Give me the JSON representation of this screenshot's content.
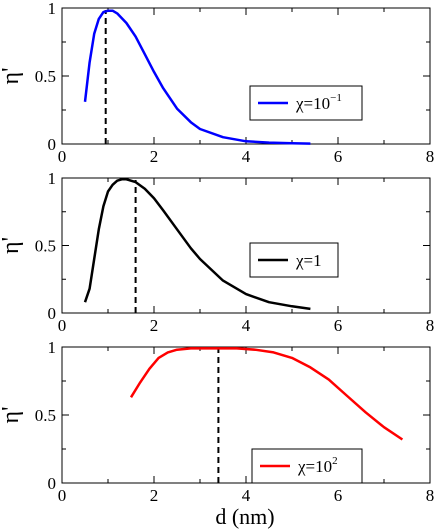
{
  "chart_data": [
    {
      "type": "line",
      "xlim": [
        0,
        8
      ],
      "ylim": [
        0,
        1
      ],
      "xticks": [
        "0",
        "2",
        "4",
        "6",
        "8"
      ],
      "yticks": [
        "0",
        "0.5",
        "1"
      ],
      "ylabel": "η'",
      "xlabel": "",
      "grid": false,
      "legend_position": "right",
      "series": [
        {
          "name_base": "χ=10",
          "name_exp": "−1",
          "color": "#0000ff",
          "x": [
            0.5,
            0.6,
            0.7,
            0.8,
            0.9,
            1.0,
            1.1,
            1.2,
            1.4,
            1.6,
            1.8,
            2.0,
            2.2,
            2.5,
            2.8,
            3.0,
            3.5,
            4.0,
            4.5,
            5.0,
            5.4
          ],
          "y": [
            0.31,
            0.6,
            0.81,
            0.92,
            0.97,
            0.98,
            0.98,
            0.96,
            0.89,
            0.79,
            0.66,
            0.53,
            0.41,
            0.26,
            0.16,
            0.11,
            0.05,
            0.02,
            0.01,
            0.005,
            0.003
          ]
        }
      ],
      "vline_x": 0.95
    },
    {
      "type": "line",
      "xlim": [
        0,
        8
      ],
      "ylim": [
        0,
        1
      ],
      "xticks": [
        "0",
        "2",
        "4",
        "6",
        "8"
      ],
      "yticks": [
        "0",
        "0.5",
        "1"
      ],
      "ylabel": "η'",
      "xlabel": "",
      "grid": false,
      "legend_position": "right",
      "series": [
        {
          "name_base": "χ=1",
          "name_exp": "",
          "color": "#000000",
          "x": [
            0.5,
            0.6,
            0.7,
            0.8,
            0.9,
            1.0,
            1.1,
            1.2,
            1.3,
            1.4,
            1.5,
            1.6,
            1.8,
            2.0,
            2.2,
            2.5,
            2.8,
            3.0,
            3.5,
            4.0,
            4.5,
            5.0,
            5.4
          ],
          "y": [
            0.08,
            0.18,
            0.4,
            0.62,
            0.79,
            0.9,
            0.95,
            0.98,
            0.99,
            0.99,
            0.98,
            0.97,
            0.92,
            0.85,
            0.76,
            0.62,
            0.48,
            0.4,
            0.24,
            0.14,
            0.08,
            0.05,
            0.03
          ]
        }
      ],
      "vline_x": 1.6
    },
    {
      "type": "line",
      "xlim": [
        0,
        8
      ],
      "ylim": [
        0,
        1
      ],
      "xticks": [
        "0",
        "2",
        "4",
        "6",
        "8"
      ],
      "yticks": [
        "0",
        "0.5",
        "1"
      ],
      "ylabel": "η'",
      "xlabel": "d  (nm)",
      "grid": false,
      "legend_position": "bottom-right",
      "series": [
        {
          "name_base": "χ=10",
          "name_exp": "2",
          "color": "#ff0000",
          "x": [
            1.5,
            1.7,
            1.9,
            2.1,
            2.3,
            2.5,
            2.8,
            3.0,
            3.4,
            3.8,
            4.2,
            4.6,
            5.0,
            5.4,
            5.8,
            6.2,
            6.6,
            7.0,
            7.4
          ],
          "y": [
            0.63,
            0.74,
            0.84,
            0.92,
            0.96,
            0.98,
            0.99,
            0.99,
            0.99,
            0.99,
            0.98,
            0.96,
            0.92,
            0.85,
            0.76,
            0.64,
            0.52,
            0.41,
            0.32
          ]
        }
      ],
      "vline_x": 3.4
    }
  ]
}
